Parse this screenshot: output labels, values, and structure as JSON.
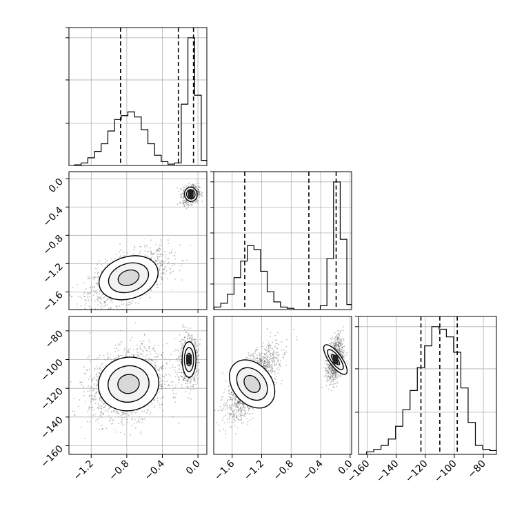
{
  "chart_data": [
    {
      "type": "histogram",
      "panel": "diag-0",
      "parameter_index": 0,
      "xlim": [
        -1.45,
        0.1
      ],
      "bins_x": [
        -1.35,
        -1.275,
        -1.2,
        -1.125,
        -1.05,
        -0.975,
        -0.9,
        -0.825,
        -0.75,
        -0.675,
        -0.6,
        -0.525,
        -0.45,
        -0.375,
        -0.3,
        -0.225,
        -0.15,
        -0.075,
        0.0,
        0.075
      ],
      "bins_y": [
        0.005,
        0.02,
        0.06,
        0.11,
        0.17,
        0.27,
        0.36,
        0.39,
        0.42,
        0.38,
        0.28,
        0.17,
        0.08,
        0.03,
        0.01,
        0.02,
        0.48,
        1.0,
        0.55,
        0.04
      ],
      "quantiles": [
        -0.87,
        -0.22,
        -0.05
      ],
      "gridlines_x": [
        -1.2,
        -0.8,
        -0.4,
        0.0
      ],
      "gridlines_y": [
        0.33,
        0.67,
        1.0
      ]
    },
    {
      "type": "scatter-density",
      "panel": "2d-1-0",
      "xlim": [
        -1.45,
        0.1
      ],
      "ylim": [
        -1.85,
        0.1
      ],
      "xticks": [
        -1.2,
        -0.8,
        -0.4,
        0.0
      ],
      "yticks": [
        "0.0",
        "−0.4",
        "−0.8",
        "−1.2",
        "−1.6"
      ],
      "yticks_values": [
        0.0,
        -0.4,
        -0.8,
        -1.2,
        -1.6
      ],
      "modes": [
        {
          "cx": -0.78,
          "cy": -1.4,
          "sx": 0.22,
          "sy": 0.19,
          "rho": 0.55,
          "n": 1400
        },
        {
          "cx": -0.08,
          "cy": -0.22,
          "sx": 0.045,
          "sy": 0.065,
          "rho": 0.2,
          "n": 700
        }
      ]
    },
    {
      "type": "histogram",
      "panel": "diag-1",
      "parameter_index": 1,
      "xlim": [
        -1.85,
        0.02
      ],
      "bins_x": [
        -1.8,
        -1.71,
        -1.62,
        -1.53,
        -1.44,
        -1.35,
        -1.26,
        -1.17,
        -1.08,
        -0.99,
        -0.9,
        -0.81,
        -0.72,
        -0.63,
        -0.54,
        -0.45,
        -0.36,
        -0.27,
        -0.18,
        -0.09,
        0.0
      ],
      "bins_y": [
        0.02,
        0.05,
        0.12,
        0.25,
        0.38,
        0.5,
        0.47,
        0.3,
        0.14,
        0.06,
        0.02,
        0.01,
        0.0,
        0.0,
        0.0,
        0.0,
        0.03,
        0.4,
        1.0,
        0.55,
        0.04
      ],
      "quantiles": [
        -1.43,
        -0.56,
        -0.19
      ],
      "gridlines_x": [
        -1.6,
        -1.2,
        -0.8,
        -0.4,
        0.0
      ],
      "gridlines_y": [
        0.2,
        0.4,
        0.6,
        0.8,
        1.0
      ]
    },
    {
      "type": "scatter-density",
      "panel": "2d-2-0",
      "xlim": [
        -1.45,
        0.1
      ],
      "ylim": [
        -166,
        -70
      ],
      "yticks": [
        "−80",
        "−100",
        "−120",
        "−140",
        "−160"
      ],
      "yticks_values": [
        -80,
        -100,
        -120,
        -140,
        -160
      ],
      "xticks": [
        "−1.2",
        "−0.8",
        "−0.4",
        "0.0"
      ],
      "xticks_values": [
        -1.2,
        -0.8,
        -0.4,
        0.0
      ],
      "modes": [
        {
          "cx": -0.78,
          "cy": -117,
          "sx": 0.22,
          "sy": 12,
          "rho": 0.25,
          "n": 1700
        },
        {
          "cx": -0.1,
          "cy": -100,
          "sx": 0.05,
          "sy": 8,
          "rho": 0.0,
          "n": 800
        }
      ]
    },
    {
      "type": "scatter-density",
      "panel": "2d-2-1",
      "xlim": [
        -1.85,
        0.02
      ],
      "ylim": [
        -166,
        -70
      ],
      "xticks": [
        "−1.6",
        "−1.2",
        "−0.8",
        "−0.4",
        "0.0"
      ],
      "xticks_values": [
        -1.6,
        -1.2,
        -0.8,
        -0.4,
        0.0
      ],
      "modes": [
        {
          "cx": -1.33,
          "cy": -117,
          "sx": 0.17,
          "sy": 12,
          "rho": 0.7,
          "n": 1600
        },
        {
          "cx": -0.2,
          "cy": -100,
          "sx": 0.055,
          "sy": 8,
          "rho": 0.3,
          "n": 800
        }
      ]
    },
    {
      "type": "histogram",
      "panel": "diag-2",
      "parameter_index": 2,
      "xlim": [
        -166,
        -71
      ],
      "bins_x": [
        -163,
        -158,
        -153,
        -148,
        -143,
        -138,
        -133,
        -128,
        -123,
        -118,
        -113,
        -108,
        -103,
        -98,
        -93,
        -88,
        -83,
        -78,
        -73
      ],
      "bins_y": [
        0.0,
        0.02,
        0.04,
        0.07,
        0.12,
        0.22,
        0.35,
        0.5,
        0.68,
        0.85,
        1.0,
        0.98,
        0.92,
        0.8,
        0.52,
        0.25,
        0.07,
        0.04,
        0.03
      ],
      "quantiles": [
        -123,
        -110,
        -98
      ],
      "xticks": [
        "−160",
        "−140",
        "−120",
        "−100",
        "−80"
      ],
      "xticks_values": [
        -160,
        -140,
        -120,
        -100,
        -80
      ],
      "gridlines_x": [
        -160,
        -140,
        -120,
        -100,
        -80
      ],
      "gridlines_y": [
        0.33,
        0.67,
        1.0
      ]
    }
  ]
}
